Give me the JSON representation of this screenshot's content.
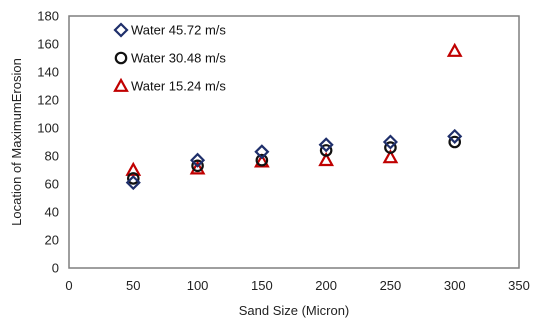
{
  "chart_data": {
    "type": "scatter",
    "title": "",
    "xlabel": "Sand Size (Micron)",
    "ylabel": "Location of MaximumErosion",
    "xlim": [
      0,
      350
    ],
    "ylim": [
      0,
      180
    ],
    "x_ticks": [
      0,
      50,
      100,
      150,
      200,
      250,
      300,
      350
    ],
    "y_ticks": [
      0,
      20,
      40,
      60,
      80,
      100,
      120,
      140,
      160,
      180
    ],
    "grid": false,
    "legend_position": "top-left",
    "series": [
      {
        "name": "Water  45.72 m/s",
        "marker": "diamond",
        "color": "#1f2f6b",
        "x": [
          50,
          100,
          150,
          200,
          250,
          300
        ],
        "y": [
          61,
          77,
          83,
          88,
          90,
          94
        ]
      },
      {
        "name": "Water 30.48 m/s",
        "marker": "circle",
        "color": "#111111",
        "x": [
          50,
          100,
          150,
          200,
          250,
          300
        ],
        "y": [
          64,
          73,
          77,
          84,
          86,
          90
        ]
      },
      {
        "name": "Water 15.24 m/s",
        "marker": "triangle",
        "color": "#c00000",
        "x": [
          50,
          100,
          150,
          200,
          250,
          300
        ],
        "y": [
          70,
          71,
          76,
          77,
          79,
          155
        ]
      }
    ]
  }
}
